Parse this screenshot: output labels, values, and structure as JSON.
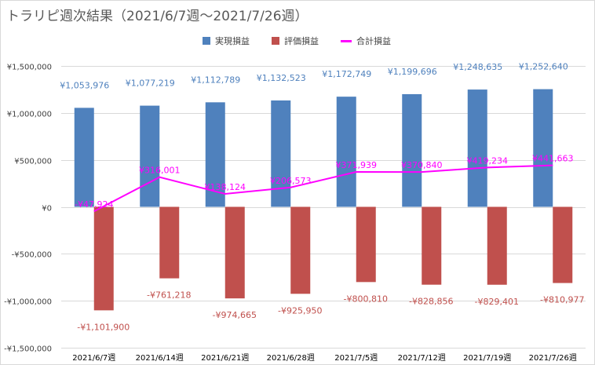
{
  "title": "トラリピ週次結果（2021/6/7週～2021/7/26週）",
  "legend": {
    "realized": "実現損益",
    "unrealized": "評価損益",
    "total": "合計損益"
  },
  "colors": {
    "realized": "#4f81bd",
    "unrealized": "#c0504d",
    "total": "#ff00ff",
    "realized_label": "#4f81bd",
    "unrealized_label": "#c0504d",
    "grid": "#d9d9d9",
    "axis_text": "#404040"
  },
  "chart_data": {
    "type": "bar",
    "title": "トラリピ週次結果（2021/6/7週～2021/7/26週）",
    "categories": [
      "2021/6/7週",
      "2021/6/14週",
      "2021/6/21週",
      "2021/6/28週",
      "2021/7/5週",
      "2021/7/12週",
      "2021/7/19週",
      "2021/7/26週"
    ],
    "series": [
      {
        "name": "実現損益",
        "type": "bar",
        "values": [
          1053976,
          1077219,
          1112789,
          1132523,
          1172749,
          1199696,
          1248635,
          1252640
        ],
        "labels": [
          "¥1,053,976",
          "¥1,077,219",
          "¥1,112,789",
          "¥1,132,523",
          "¥1,172,749",
          "¥1,199,696",
          "¥1,248,635",
          "¥1,252,640"
        ]
      },
      {
        "name": "評価損益",
        "type": "bar",
        "values": [
          -1101900,
          -761218,
          -974665,
          -925950,
          -800810,
          -828856,
          -829401,
          -810977
        ],
        "labels": [
          "-¥1,101,900",
          "-¥761,218",
          "-¥974,665",
          "-¥925,950",
          "-¥800,810",
          "-¥828,856",
          "-¥829,401",
          "-¥810,977"
        ]
      },
      {
        "name": "合計損益",
        "type": "line",
        "values": [
          -47924,
          316001,
          138124,
          206573,
          371939,
          370840,
          419234,
          441663
        ],
        "labels": [
          "-¥47,924",
          "¥316,001",
          "¥138,124",
          "¥206,573",
          "¥371,939",
          "¥370,840",
          "¥419,234",
          "¥441,663"
        ]
      }
    ],
    "ylim": [
      -1500000,
      1500000
    ],
    "yticks": [
      1500000,
      1000000,
      500000,
      0,
      -500000,
      -1000000,
      -1500000
    ],
    "ytick_labels": [
      "¥1,500,000",
      "¥1,000,000",
      "¥500,000",
      "¥0",
      "-¥500,000",
      "-¥1,000,000",
      "-¥1,500,000"
    ],
    "legend_position": "top",
    "grid": true
  }
}
